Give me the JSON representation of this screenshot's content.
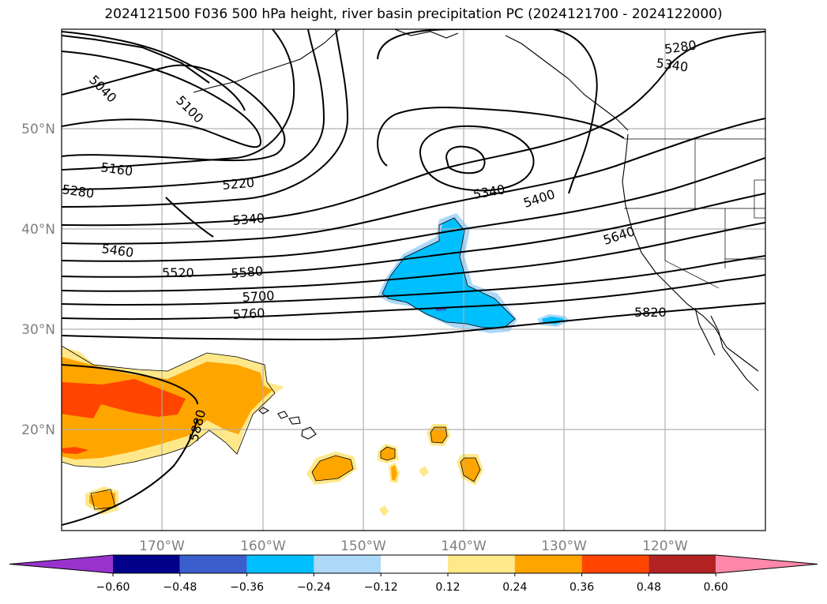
{
  "title": "2024121500 F036 500 hPa height, river basin precipitation PC (2024121700 - 2024122000)",
  "map": {
    "lat_labels": [
      "50°N",
      "40°N",
      "30°N",
      "20°N"
    ],
    "lon_labels": [
      "170°W",
      "160°W",
      "150°W",
      "140°W",
      "130°W",
      "120°W"
    ],
    "contour_labels": [
      "5280",
      "5340",
      "5040",
      "5100",
      "5160",
      "5220",
      "5280",
      "5340",
      "5400",
      "5340",
      "5460",
      "5520",
      "5580",
      "5640",
      "5700",
      "5760",
      "5820",
      "5880"
    ]
  },
  "colorbar": {
    "ticks": [
      "−0.60",
      "−0.48",
      "−0.36",
      "−0.24",
      "−0.12",
      "0.12",
      "0.24",
      "0.36",
      "0.48",
      "0.60"
    ],
    "colors": [
      "#9932cc",
      "#00008b",
      "#3a5fcd",
      "#00bfff",
      "#add8f8",
      "#ffffff",
      "#ffe88a",
      "#ffa500",
      "#ff4500",
      "#b22222",
      "#ff88aa"
    ]
  }
}
